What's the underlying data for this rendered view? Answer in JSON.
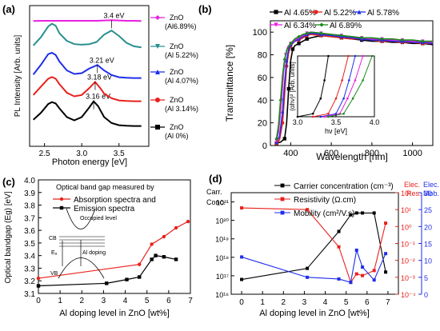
{
  "panels": {
    "a": {
      "label": "(a)"
    },
    "b": {
      "label": "(b)"
    },
    "c": {
      "label": "(c)"
    },
    "d": {
      "label": "(d)"
    }
  },
  "chart_data": [
    {
      "id": "a",
      "type": "line",
      "xlabel": "Photon energy [eV]",
      "ylabel": "PL Intensity [Arb. units]",
      "xlim": [
        2.3,
        3.9
      ],
      "x_ticks": [
        2.5,
        3.0,
        3.5
      ],
      "x_tick_labels": [
        "2.5",
        "3.0",
        "3.5"
      ],
      "grid": false,
      "legend_position": "right",
      "series": [
        {
          "name": "Al 0%",
          "legend_line1": "ZnO",
          "legend_line2": "(Al 0%)",
          "color": "#000000",
          "marker": "square",
          "x": [
            2.35,
            2.45,
            2.55,
            2.6,
            2.65,
            2.7,
            2.8,
            2.9,
            3.0,
            3.1,
            3.16,
            3.22,
            3.3,
            3.4,
            3.5,
            3.6,
            3.7,
            3.8
          ],
          "y": [
            0.3,
            0.55,
            0.88,
            0.95,
            0.9,
            0.72,
            0.4,
            0.28,
            0.4,
            0.75,
            0.98,
            0.8,
            0.4,
            0.18,
            0.1,
            0.08,
            0.07,
            0.07
          ],
          "peak_label": "3.16 eV",
          "peak_x": 3.16
        },
        {
          "name": "Al 3.14%",
          "legend_line1": "ZnO",
          "legend_line2": "(Al 3.14%)",
          "color": "#e8211c",
          "marker": "circle",
          "x": [
            2.35,
            2.45,
            2.55,
            2.6,
            2.65,
            2.7,
            2.8,
            2.9,
            3.0,
            3.1,
            3.18,
            3.25,
            3.3,
            3.4,
            3.5,
            3.6,
            3.7,
            3.8
          ],
          "y": [
            0.3,
            0.6,
            0.9,
            0.96,
            0.9,
            0.7,
            0.38,
            0.25,
            0.3,
            0.55,
            0.78,
            0.55,
            0.35,
            0.18,
            0.1,
            0.08,
            0.07,
            0.07
          ],
          "peak_label": "3.18 eV",
          "peak_x": 3.18
        },
        {
          "name": "Al 4.07%",
          "legend_line1": "ZnO",
          "legend_line2": "(Al 4.07%)",
          "color": "#1f2ee8",
          "marker": "triangle",
          "x": [
            2.35,
            2.45,
            2.55,
            2.6,
            2.65,
            2.7,
            2.8,
            2.9,
            3.0,
            3.1,
            3.21,
            3.3,
            3.4,
            3.5,
            3.6,
            3.7,
            3.8
          ],
          "y": [
            0.2,
            0.55,
            0.95,
            1.0,
            0.92,
            0.68,
            0.35,
            0.22,
            0.25,
            0.42,
            0.55,
            0.35,
            0.18,
            0.1,
            0.08,
            0.07,
            0.07
          ],
          "peak_label": "3.21 eV",
          "peak_x": 3.21
        },
        {
          "name": "Al 5.22%",
          "legend_line1": "ZnO",
          "legend_line2": "(Al 5.22%)",
          "color": "#2a8f8f",
          "marker": "triangle-down",
          "x": [
            2.35,
            2.45,
            2.55,
            2.6,
            2.65,
            2.7,
            2.8,
            2.9,
            3.0,
            3.1,
            3.2,
            3.3,
            3.4,
            3.5,
            3.6,
            3.7,
            3.8
          ],
          "y": [
            0.15,
            0.45,
            0.85,
            0.95,
            0.88,
            0.6,
            0.32,
            0.2,
            0.18,
            0.2,
            0.28,
            0.55,
            0.7,
            0.5,
            0.25,
            0.12,
            0.08
          ]
        },
        {
          "name": "Al 6.89%",
          "legend_line1": "ZnO",
          "legend_line2": "(Al6.89%)",
          "color": "#e61fe0",
          "marker": "diamond",
          "x": [
            2.35,
            2.5,
            2.65,
            2.8,
            2.95,
            3.1,
            3.2,
            3.3,
            3.4,
            3.5,
            3.6,
            3.7,
            3.8
          ],
          "y": [
            0.05,
            0.06,
            0.06,
            0.06,
            0.06,
            0.06,
            0.06,
            0.07,
            0.08,
            0.07,
            0.06,
            0.06,
            0.05
          ],
          "peak_label": "3.4 eV",
          "peak_x": 3.4
        }
      ]
    },
    {
      "id": "b",
      "type": "line",
      "xlabel": "Wavelength [nm]",
      "ylabel": "Transmittance [%]",
      "xlim": [
        300,
        1100
      ],
      "ylim": [
        0,
        110
      ],
      "x_ticks": [
        400,
        600,
        800,
        1000
      ],
      "y_ticks": [
        0,
        20,
        40,
        60,
        80,
        100
      ],
      "legend_position": "top",
      "series": [
        {
          "name": "Al 4.65%",
          "color": "#000000",
          "marker": "square",
          "x": [
            330,
            350,
            370,
            380,
            390,
            400,
            410,
            420,
            440,
            460,
            480,
            500,
            550,
            600,
            650,
            700,
            750,
            800,
            850,
            900,
            950,
            1000,
            1050,
            1100
          ],
          "y": [
            2,
            3,
            6,
            20,
            50,
            75,
            85,
            88,
            90,
            92,
            94,
            95,
            97,
            96,
            95,
            94,
            93,
            92,
            92,
            91,
            91,
            90,
            90,
            89
          ]
        },
        {
          "name": "Al 5.22%",
          "color": "#e8211c",
          "marker": "circle",
          "x": [
            330,
            345,
            360,
            370,
            380,
            390,
            400,
            420,
            440,
            460,
            480,
            500,
            550,
            600,
            650,
            700,
            750,
            800,
            850,
            900,
            950,
            1000,
            1050,
            1100
          ],
          "y": [
            2,
            5,
            20,
            45,
            70,
            82,
            88,
            92,
            93,
            95,
            97,
            98,
            97,
            96,
            95,
            94,
            94,
            93,
            92,
            92,
            91,
            91,
            90,
            90
          ]
        },
        {
          "name": "Al 5.78%",
          "color": "#1f2ee8",
          "marker": "triangle",
          "x": [
            330,
            345,
            360,
            370,
            380,
            390,
            400,
            420,
            440,
            460,
            480,
            500,
            550,
            600,
            650,
            700,
            750,
            800,
            850,
            900,
            950,
            1000,
            1050,
            1100
          ],
          "y": [
            3,
            8,
            30,
            55,
            75,
            85,
            89,
            92,
            94,
            96,
            98,
            99,
            98,
            97,
            96,
            95,
            94,
            93,
            93,
            92,
            92,
            91,
            91,
            90
          ]
        },
        {
          "name": "Al 6.34%",
          "color": "#e61fe0",
          "marker": "triangle-down",
          "x": [
            330,
            340,
            355,
            365,
            375,
            385,
            400,
            420,
            440,
            460,
            480,
            500,
            550,
            600,
            650,
            700,
            750,
            800,
            850,
            900,
            950,
            1000,
            1050,
            1100
          ],
          "y": [
            4,
            12,
            40,
            65,
            80,
            87,
            90,
            93,
            95,
            97,
            99,
            100,
            99,
            98,
            97,
            96,
            95,
            94,
            94,
            93,
            93,
            92,
            92,
            91
          ]
        },
        {
          "name": "Al 6.89%",
          "color": "#1a8a1a",
          "marker": "diamond",
          "x": [
            330,
            340,
            350,
            360,
            370,
            380,
            400,
            420,
            440,
            460,
            480,
            500,
            550,
            600,
            650,
            700,
            750,
            800,
            850,
            900,
            950,
            1000,
            1050,
            1100
          ],
          "y": [
            6,
            18,
            40,
            62,
            76,
            84,
            90,
            94,
            96,
            98,
            99,
            100,
            99,
            98,
            97,
            96,
            95,
            95,
            94,
            94,
            93,
            93,
            92,
            92
          ]
        }
      ],
      "inset": {
        "type": "line",
        "xlabel": "hν [eV]",
        "ylabel": "(αhν)² [Arb. units]",
        "xlim": [
          3.0,
          4.0
        ],
        "x_ticks": [
          3.0,
          3.5,
          4.0
        ],
        "x_tick_labels": [
          "3.0",
          "3.5",
          "4.0"
        ],
        "series": [
          {
            "name": "Al 4.65%",
            "color": "#000000",
            "x": [
              3.0,
              3.2,
              3.3,
              3.35,
              3.4
            ],
            "y": [
              0.0,
              0.05,
              0.3,
              0.6,
              1.0
            ]
          },
          {
            "name": "Al 5.22%",
            "color": "#e8211c",
            "x": [
              3.2,
              3.4,
              3.5,
              3.58,
              3.66
            ],
            "y": [
              0.0,
              0.05,
              0.3,
              0.6,
              1.0
            ]
          },
          {
            "name": "Al 5.78%",
            "color": "#1f2ee8",
            "x": [
              3.3,
              3.5,
              3.6,
              3.67,
              3.75
            ],
            "y": [
              0.0,
              0.05,
              0.3,
              0.6,
              1.0
            ]
          },
          {
            "name": "Al 6.34%",
            "color": "#e61fe0",
            "x": [
              3.35,
              3.55,
              3.65,
              3.75,
              3.85
            ],
            "y": [
              0.0,
              0.05,
              0.3,
              0.6,
              1.0
            ]
          },
          {
            "name": "Al 6.89%",
            "color": "#1a8a1a",
            "x": [
              3.4,
              3.6,
              3.72,
              3.85,
              3.97
            ],
            "y": [
              0.0,
              0.05,
              0.3,
              0.6,
              1.0
            ]
          }
        ]
      }
    },
    {
      "id": "c",
      "type": "line",
      "title_line1": "Optical band gap measured by",
      "xlabel": "Al doping level in ZnO [wt%]",
      "ylabel": "Optical bandgap (Eg) [eV]",
      "xlim": [
        0,
        7
      ],
      "ylim": [
        3.1,
        4.0
      ],
      "x_ticks": [
        0,
        1,
        2,
        3,
        4,
        5,
        6,
        7
      ],
      "y_ticks": [
        3.1,
        3.2,
        3.3,
        3.4,
        3.5,
        3.6,
        3.7,
        3.8,
        3.9,
        4.0
      ],
      "y_tick_labels": [
        "3.1",
        "3.2",
        "3.3",
        "3.4",
        "3.5",
        "3.6",
        "3.7",
        "3.8",
        "3.9",
        "4.0"
      ],
      "legend_position": "top",
      "series": [
        {
          "name": "Absorption spectra and",
          "color": "#e8211c",
          "marker": "circle",
          "x": [
            0,
            4.65,
            5.22,
            5.78,
            6.34,
            6.89
          ],
          "y": [
            3.22,
            3.33,
            3.49,
            3.55,
            3.62,
            3.67
          ]
        },
        {
          "name": "Emission spectra",
          "color": "#000000",
          "marker": "square",
          "x": [
            0,
            3.14,
            4.07,
            4.65,
            5.22,
            5.4,
            5.78,
            6.34
          ],
          "y": [
            3.16,
            3.18,
            3.21,
            3.23,
            3.37,
            3.4,
            3.39,
            3.37
          ]
        }
      ],
      "inset_diagram": {
        "labels": [
          "Occupied level",
          "CB",
          "Eₐ",
          "Al doping",
          "VB"
        ]
      }
    },
    {
      "id": "d",
      "type": "line",
      "xlabel": "Al doping level in ZnO [wt%]",
      "left_axis_label": [
        "Carr.",
        "Conc."
      ],
      "right_axis_label_1": [
        "Elec.",
        "Res."
      ],
      "right_axis_label_2": [
        "Elec.",
        "Mob."
      ],
      "xlim": [
        -0.5,
        7.5
      ],
      "x_ticks": [
        0,
        1,
        2,
        3,
        4,
        5,
        6,
        7
      ],
      "left_log_range": [
        16,
        21.5
      ],
      "left_y_ticks": [
        "10¹⁶",
        "10¹⁷",
        "10¹⁸",
        "10¹⁹",
        "10²⁰",
        "10²¹"
      ],
      "right1_log_range": [
        -4,
        2
      ],
      "right1_y_ticks": [
        "10⁻⁴",
        "10⁻³",
        "10⁻²",
        "10⁻¹",
        "10⁰",
        "10¹",
        "10²"
      ],
      "right2_ticks": [
        0,
        5,
        10,
        15,
        20,
        25,
        30
      ],
      "legend_position": "top",
      "series": [
        {
          "name": "Carrier concentration (cm⁻³)",
          "color": "#000000",
          "marker": "square",
          "axis": "left",
          "x": [
            0,
            3.14,
            4.65,
            5.22,
            5.5,
            5.78,
            6.34,
            6.89
          ],
          "y_log": [
            16.8,
            17.4,
            19.4,
            20.3,
            20.4,
            20.4,
            20.4,
            17.2
          ]
        },
        {
          "name": "Resistivity (Ω.cm)",
          "color": "#e8211c",
          "marker": "square",
          "axis": "right1",
          "x": [
            0,
            3.14,
            4.65,
            5.22,
            5.5,
            5.78,
            6.34,
            6.89
          ],
          "y_log": [
            1.1,
            1.0,
            -1.2,
            -3.3,
            -2.8,
            -2.9,
            -2.6,
            0.2
          ]
        },
        {
          "name": "Mobility (cm²/V.s)",
          "color": "#1f2ee8",
          "marker": "square",
          "axis": "right2",
          "x": [
            0,
            3.14,
            4.65,
            5.22,
            5.5,
            5.78,
            6.34,
            6.89
          ],
          "y": [
            11,
            5,
            4.5,
            3.5,
            13,
            8,
            4.2,
            12
          ]
        }
      ]
    }
  ]
}
